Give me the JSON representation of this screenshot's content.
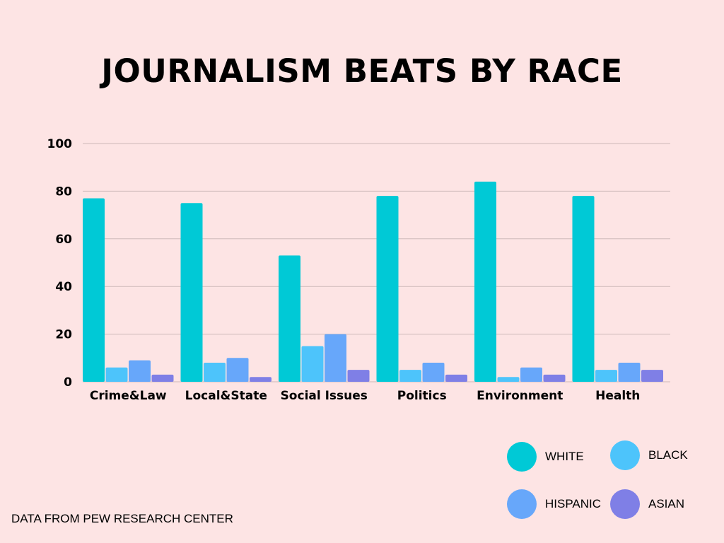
{
  "chart_data": {
    "type": "bar",
    "title": "JOURNALISM BEATS BY RACE",
    "categories": [
      "Crime&Law",
      "Local&State",
      "Social Issues",
      "Politics",
      "Environment",
      "Health"
    ],
    "series": [
      {
        "name": "WHITE",
        "color": "#00c9d6",
        "values": [
          77,
          75,
          53,
          78,
          84,
          78
        ]
      },
      {
        "name": "BLACK",
        "color": "#4dc4fb",
        "values": [
          6,
          8,
          15,
          5,
          2,
          5
        ]
      },
      {
        "name": "HISPANIC",
        "color": "#67a7fa",
        "values": [
          9,
          10,
          20,
          8,
          6,
          8
        ]
      },
      {
        "name": "ASIAN",
        "color": "#7f7fe6",
        "values": [
          3,
          2,
          5,
          3,
          3,
          5
        ]
      }
    ],
    "yticks": [
      "0",
      "20",
      "40",
      "60",
      "80",
      "100"
    ],
    "ylim": [
      0,
      100
    ],
    "grid": true,
    "legend_position": "bottom-right"
  },
  "source_note": "DATA FROM PEW RESEARCH CENTER"
}
